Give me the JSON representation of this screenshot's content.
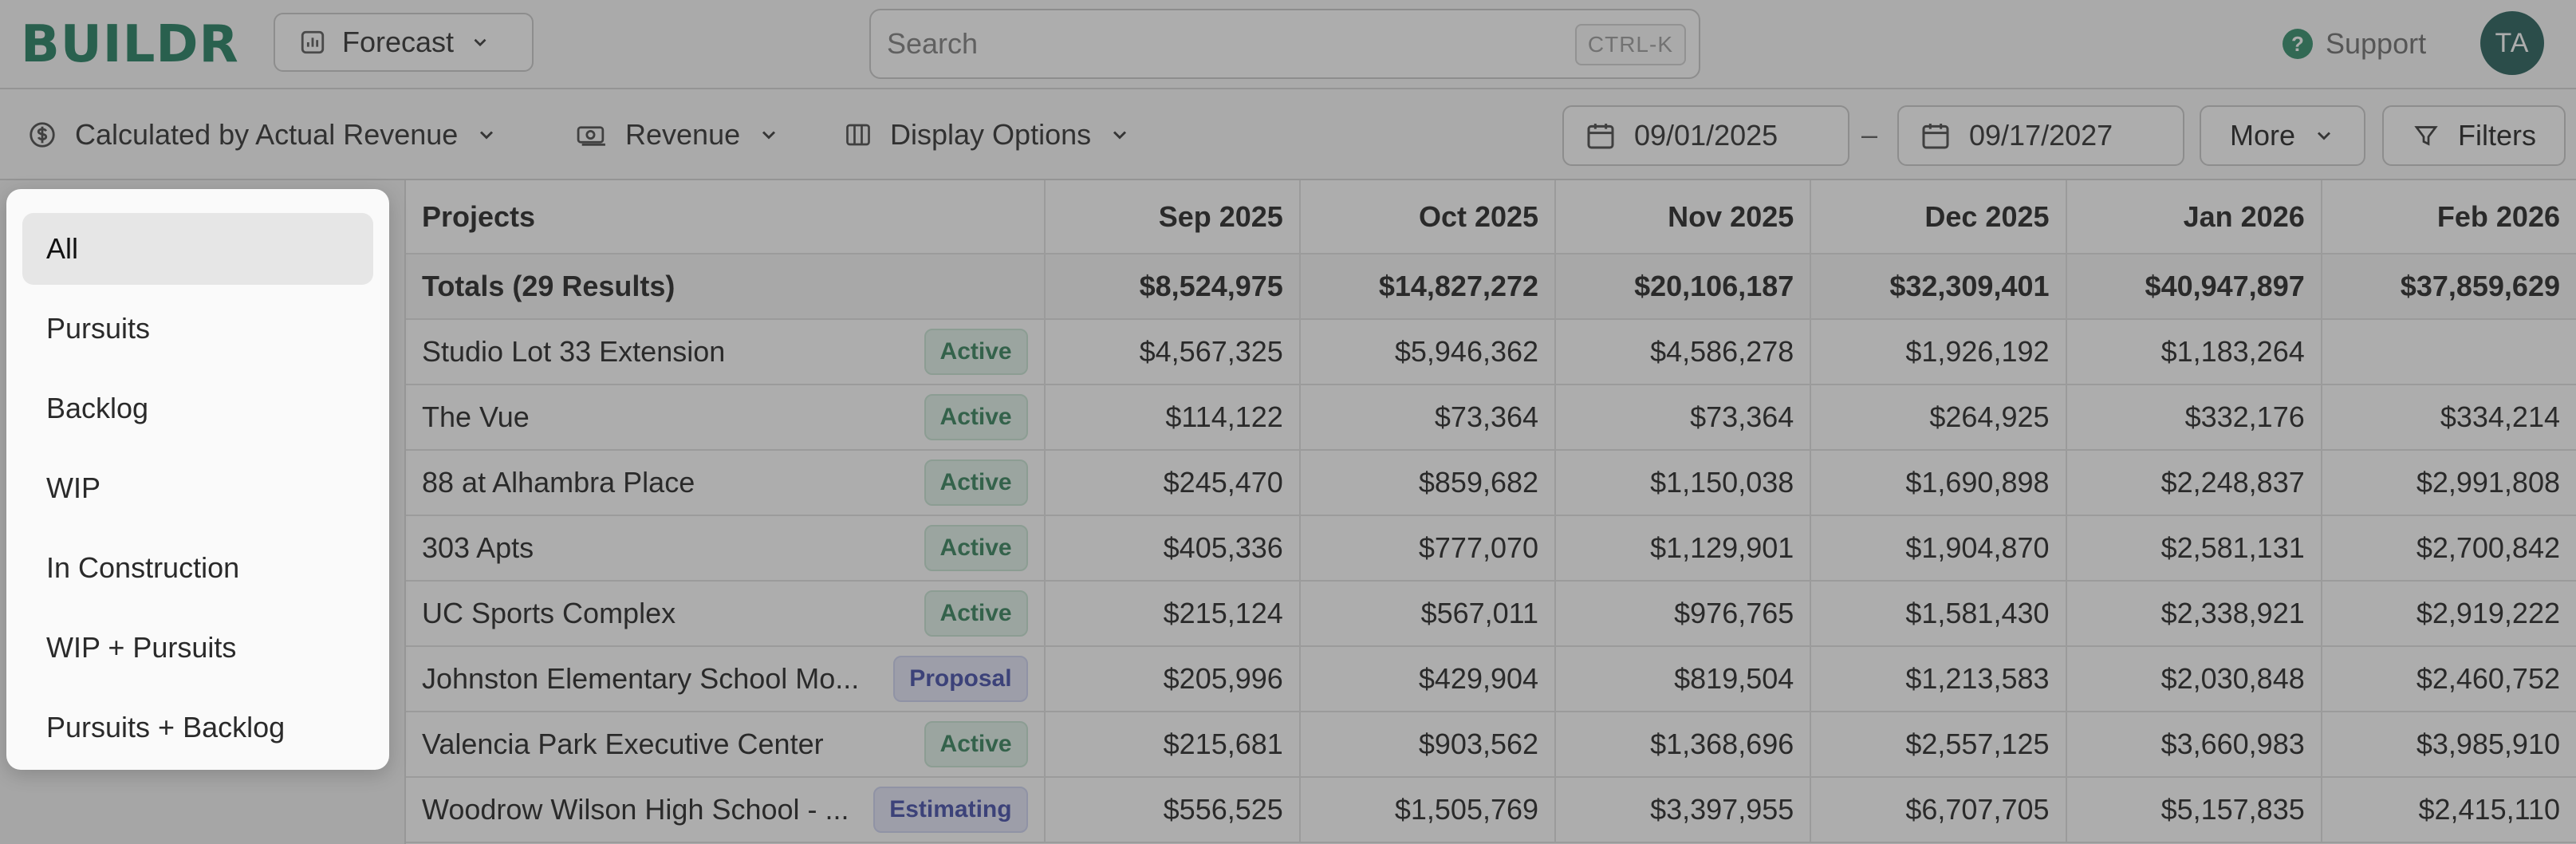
{
  "topbar": {
    "logo": "BUILDR",
    "view_button_label": "Forecast",
    "search": {
      "placeholder": "Search",
      "shortcut": "CTRL-K"
    },
    "support_label": "Support",
    "avatar_initials": "TA"
  },
  "toolbar": {
    "calc_label": "Calculated by Actual Revenue",
    "metric_label": "Revenue",
    "display_label": "Display Options",
    "date_start": "09/01/2025",
    "date_separator": "–",
    "date_end": "09/17/2027",
    "more_label": "More",
    "filters_label": "Filters"
  },
  "table": {
    "project_header": "Projects",
    "months": [
      "Sep 2025",
      "Oct 2025",
      "Nov 2025",
      "Dec 2025",
      "Jan 2026",
      "Feb 2026"
    ],
    "totals": {
      "label": "Totals (29 Results)",
      "values": [
        "$8,524,975",
        "$14,827,272",
        "$20,106,187",
        "$32,309,401",
        "$40,947,897",
        "$37,859,629"
      ]
    },
    "rows": [
      {
        "name": "Studio Lot 33 Extension",
        "status": "Active",
        "status_type": "active",
        "values": [
          "$4,567,325",
          "$5,946,362",
          "$4,586,278",
          "$1,926,192",
          "$1,183,264",
          ""
        ]
      },
      {
        "name": "The Vue",
        "status": "Active",
        "status_type": "active",
        "values": [
          "$114,122",
          "$73,364",
          "$73,364",
          "$264,925",
          "$332,176",
          "$334,214"
        ]
      },
      {
        "name": "88 at Alhambra Place",
        "status": "Active",
        "status_type": "active",
        "values": [
          "$245,470",
          "$859,682",
          "$1,150,038",
          "$1,690,898",
          "$2,248,837",
          "$2,991,808"
        ]
      },
      {
        "name": "303 Apts",
        "status": "Active",
        "status_type": "active",
        "values": [
          "$405,336",
          "$777,070",
          "$1,129,901",
          "$1,904,870",
          "$2,581,131",
          "$2,700,842"
        ]
      },
      {
        "name": "UC Sports Complex",
        "status": "Active",
        "status_type": "active",
        "values": [
          "$215,124",
          "$567,011",
          "$976,765",
          "$1,581,430",
          "$2,338,921",
          "$2,919,222"
        ]
      },
      {
        "name": "Johnston Elementary School Mo...",
        "status": "Proposal",
        "status_type": "proposal",
        "values": [
          "$205,996",
          "$429,904",
          "$819,504",
          "$1,213,583",
          "$2,030,848",
          "$2,460,752"
        ]
      },
      {
        "name": "Valencia Park Executive Center",
        "status": "Active",
        "status_type": "active",
        "values": [
          "$215,681",
          "$903,562",
          "$1,368,696",
          "$2,557,125",
          "$3,660,983",
          "$3,985,910"
        ]
      },
      {
        "name": "Woodrow Wilson High School - ...",
        "status": "Estimating",
        "status_type": "estimating",
        "values": [
          "$556,525",
          "$1,505,769",
          "$3,397,955",
          "$6,707,705",
          "$5,157,835",
          "$2,415,110"
        ]
      }
    ]
  },
  "dropdown": {
    "selected": "All",
    "items": [
      "All",
      "Pursuits",
      "Backlog",
      "WIP",
      "In Construction",
      "WIP + Pursuits",
      "Pursuits + Backlog"
    ]
  },
  "colors": {
    "brand": "#1c7a5c",
    "active_badge": "#2f7f56",
    "proposal_badge": "#3d48a6",
    "avatar": "#1f5a55"
  },
  "icons": {
    "forecast": "bar-chart-icon",
    "calc": "dollar-circle-icon",
    "metric": "money-bill-icon",
    "display": "columns-icon",
    "date": "calendar-icon",
    "filters": "funnel-icon",
    "support": "help-circle-icon"
  }
}
